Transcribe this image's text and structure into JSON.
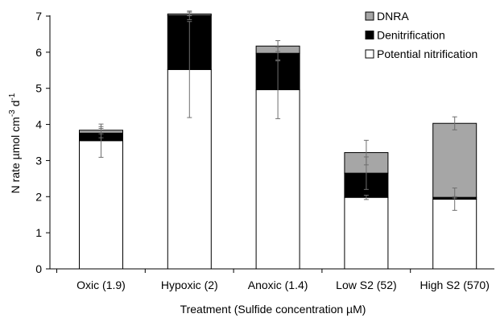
{
  "chart_data": {
    "type": "bar",
    "stacked": true,
    "categories": [
      "Oxic (1.9)",
      "Hypoxic (2)",
      "Anoxic (1.4)",
      "Low S2 (52)",
      "High S2 (570)"
    ],
    "series": [
      {
        "name": "Potential nitrification",
        "color": "#ffffff",
        "values": [
          3.55,
          5.52,
          4.96,
          1.98,
          1.93
        ],
        "error": [
          0.46,
          1.33,
          0.8,
          0.06,
          0.31
        ]
      },
      {
        "name": "Denitrification",
        "color": "#000000",
        "values": [
          0.21,
          1.5,
          1.01,
          0.67,
          0.05
        ],
        "error": [
          0.13,
          0.12,
          0.18,
          0.45,
          0.02
        ]
      },
      {
        "name": "DNRA",
        "color": "#a6a6a6",
        "values": [
          0.08,
          0.04,
          0.2,
          0.57,
          2.05
        ],
        "error": [
          0.1,
          0.05,
          0.15,
          0.34,
          0.18
        ]
      }
    ],
    "legend_order": [
      "DNRA",
      "Denitrification",
      "Potential nitrification"
    ],
    "legend_position": "top-right",
    "xlabel": "Treatment (Sulfide concentration µM)",
    "ylabel": "N rate µmol cm-3 d-1",
    "ylabel_parts": {
      "base": "N rate µmol cm",
      "exp1": "-3",
      "mid": " d",
      "exp2": "-1"
    },
    "ylim": [
      0,
      7
    ],
    "yticks": [
      0,
      1,
      2,
      3,
      4,
      5,
      6,
      7
    ],
    "grid": false
  }
}
